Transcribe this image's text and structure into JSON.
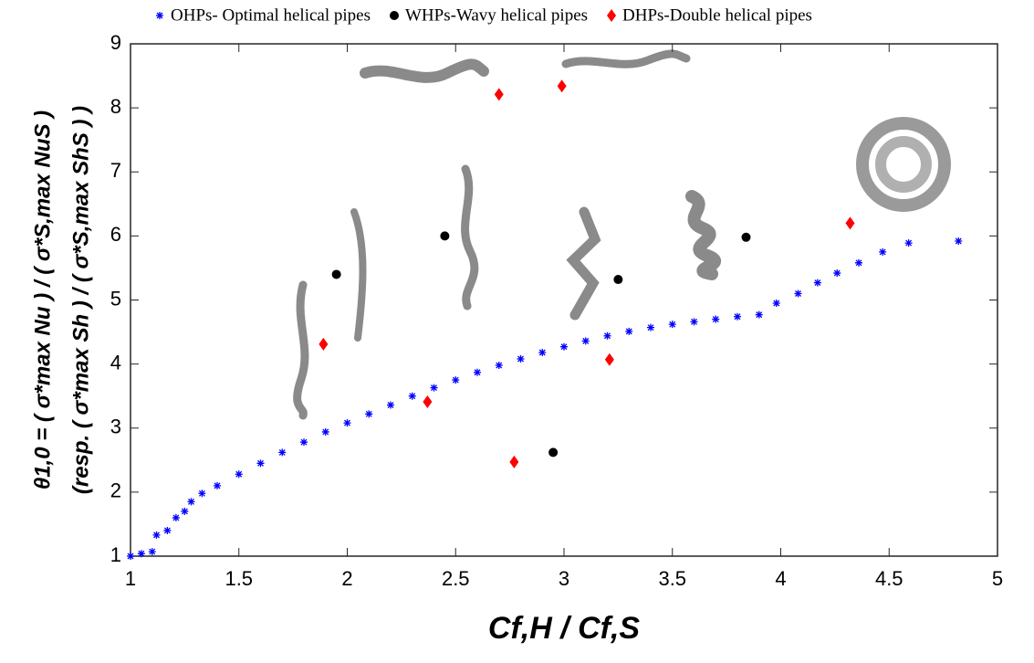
{
  "chart_data": {
    "type": "scatter",
    "xlabel": "Cf,H / Cf,S",
    "ylabel": [
      "θ1,0 = ( σ*max Nu ) / ( σ*S,max NuS )",
      "(resp. ( σ*max Sh ) / ( σ*S,max ShS ) )"
    ],
    "xlim": [
      1,
      5
    ],
    "xticks": [
      1,
      1.5,
      2,
      2.5,
      3,
      3.5,
      4,
      4.5,
      5
    ],
    "ylim": [
      1,
      9
    ],
    "yticks": [
      1,
      2,
      3,
      4,
      5,
      6,
      7,
      8,
      9
    ],
    "legend": "top",
    "series": [
      {
        "name": "OHPs- Optimal helical pipes",
        "color": "#0000ff",
        "marker": "asterisk",
        "x": [
          1.0,
          1.05,
          1.1,
          1.12,
          1.17,
          1.21,
          1.25,
          1.28,
          1.33,
          1.4,
          1.5,
          1.6,
          1.7,
          1.8,
          1.9,
          2.0,
          2.1,
          2.2,
          2.3,
          2.4,
          2.5,
          2.6,
          2.7,
          2.8,
          2.9,
          3.0,
          3.1,
          3.2,
          3.3,
          3.4,
          3.5,
          3.6,
          3.7,
          3.8,
          3.9,
          3.98,
          4.08,
          4.17,
          4.26,
          4.36,
          4.47,
          4.59,
          4.82
        ],
        "values": [
          1.0,
          1.04,
          1.07,
          1.33,
          1.4,
          1.6,
          1.7,
          1.85,
          1.98,
          2.1,
          2.28,
          2.45,
          2.62,
          2.78,
          2.94,
          3.08,
          3.22,
          3.36,
          3.5,
          3.63,
          3.75,
          3.87,
          3.98,
          4.08,
          4.18,
          4.27,
          4.36,
          4.44,
          4.51,
          4.57,
          4.62,
          4.66,
          4.7,
          4.74,
          4.77,
          4.95,
          5.1,
          5.27,
          5.42,
          5.58,
          5.75,
          5.89,
          5.92
        ]
      },
      {
        "name": "WHPs-Wavy helical pipes",
        "color": "#000000",
        "marker": "circle",
        "x": [
          1.95,
          2.45,
          2.95,
          3.25,
          3.84
        ],
        "values": [
          5.4,
          6.0,
          2.62,
          5.32,
          5.98
        ]
      },
      {
        "name": "DHPs-Double helical pipes",
        "color": "#ff0000",
        "marker": "diamond",
        "x": [
          1.89,
          2.37,
          2.7,
          2.77,
          2.99,
          3.21,
          4.32
        ],
        "values": [
          4.31,
          3.41,
          8.21,
          2.47,
          8.34,
          4.07,
          6.2
        ]
      }
    ]
  }
}
